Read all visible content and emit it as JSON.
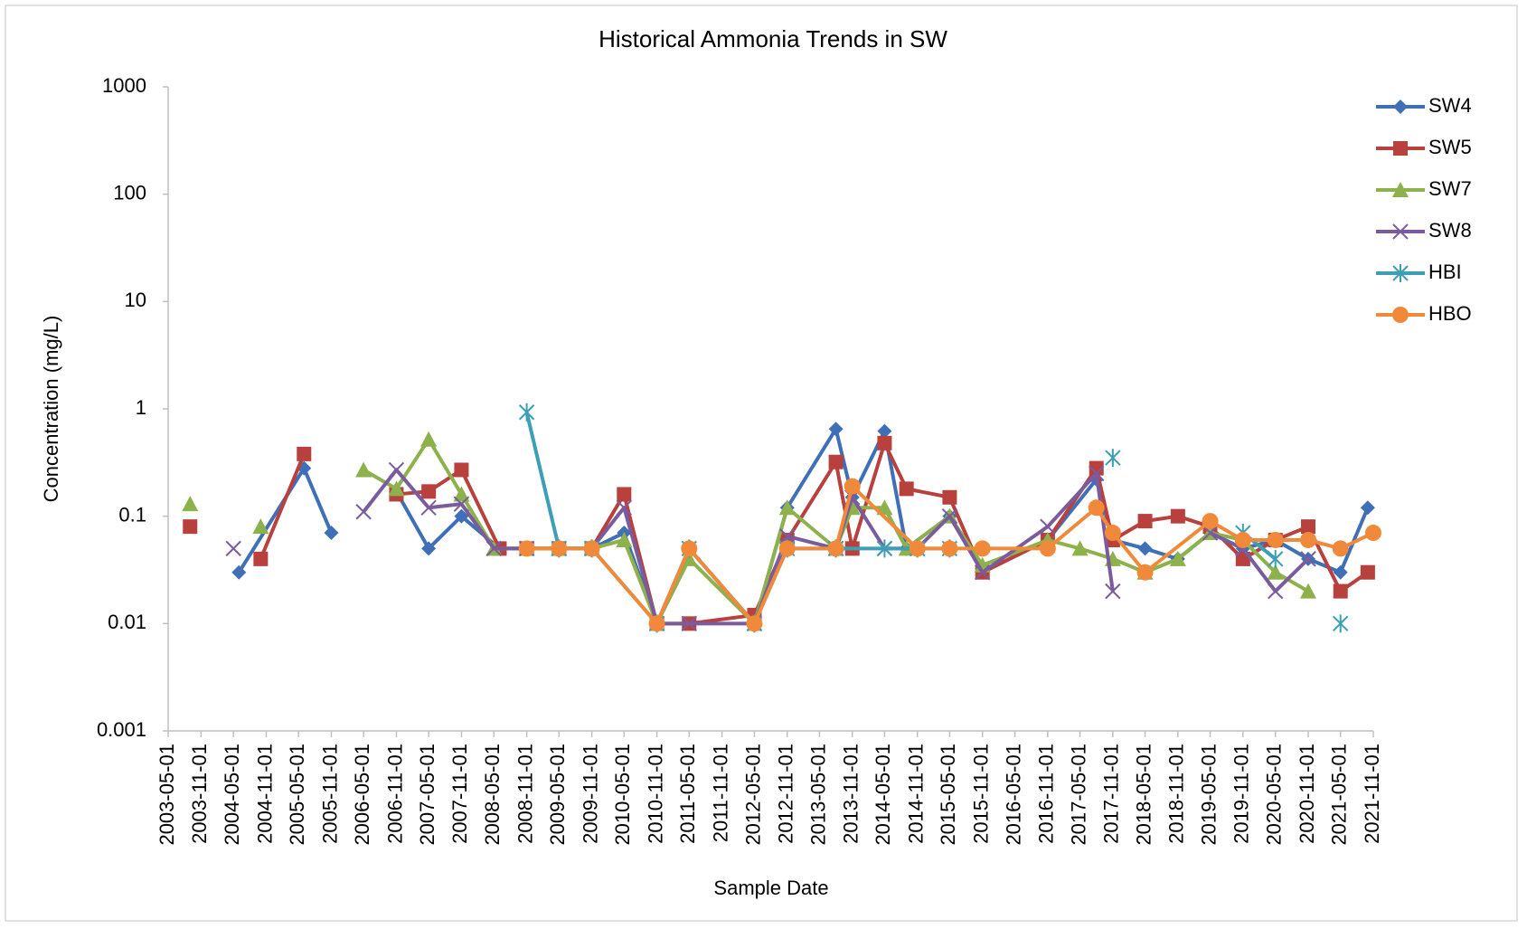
{
  "chart_data": {
    "type": "line",
    "title": "Historical Ammonia Trends in SW",
    "x_label": "Sample Date",
    "y_label": "Concentration (mg/L)",
    "log_y": true,
    "grid": false,
    "legend": "right",
    "ylim": [
      0.001,
      1000
    ],
    "yticks": [
      0.001,
      0.01,
      0.1,
      1,
      10,
      100,
      1000
    ],
    "xlim": [
      "2003-05-01",
      "2021-11-01"
    ],
    "xticks": [
      "2003-05-01",
      "2003-11-01",
      "2004-05-01",
      "2004-11-01",
      "2005-05-01",
      "2005-11-01",
      "2006-05-01",
      "2006-11-01",
      "2007-05-01",
      "2007-11-01",
      "2008-05-01",
      "2008-11-01",
      "2009-05-01",
      "2009-11-01",
      "2010-05-01",
      "2010-11-01",
      "2011-05-01",
      "2011-11-01",
      "2012-05-01",
      "2012-11-01",
      "2013-05-01",
      "2013-11-01",
      "2014-05-01",
      "2014-11-01",
      "2015-05-01",
      "2015-11-01",
      "2016-05-01",
      "2016-11-01",
      "2017-05-01",
      "2017-11-01",
      "2018-05-01",
      "2018-11-01",
      "2019-05-01",
      "2019-11-01",
      "2020-05-01",
      "2020-11-01",
      "2021-05-01",
      "2021-11-01"
    ],
    "series": [
      {
        "name": "SW4",
        "color": "#3f6fb6",
        "marker": "diamond",
        "x": [
          "2004-06-01",
          "2005-06-01",
          "2005-11-01",
          "2006-05-01",
          "2006-11-01",
          "2007-05-01",
          "2007-11-01",
          "2008-06-01",
          "2008-11-01",
          "2009-05-01",
          "2009-11-01",
          "2010-05-01",
          "2010-11-01",
          "2011-05-01",
          "2012-05-01",
          "2012-11-01",
          "2013-08-01",
          "2013-11-01",
          "2014-05-01",
          "2014-09-01",
          "2015-05-01",
          "2015-11-01",
          "2016-11-01",
          "2017-08-01",
          "2017-11-01",
          "2018-05-01",
          "2018-11-01",
          "2019-05-01",
          "2019-11-01",
          "2020-05-01",
          "2020-11-01",
          "2021-05-01",
          "2021-10-01"
        ],
        "values": [
          0.03,
          0.28,
          0.07,
          null,
          0.17,
          0.05,
          0.1,
          0.05,
          0.05,
          0.05,
          0.05,
          0.07,
          0.01,
          0.05,
          0.01,
          0.12,
          0.65,
          0.15,
          0.62,
          0.05,
          0.1,
          0.03,
          0.06,
          0.22,
          0.06,
          0.05,
          0.04,
          0.07,
          0.05,
          0.06,
          0.04,
          0.03,
          0.12
        ]
      },
      {
        "name": "SW5",
        "color": "#b8403d",
        "marker": "square",
        "x": [
          "2003-09-01",
          "2004-03-01",
          "2004-10-01",
          "2005-06-01",
          "2006-05-01",
          "2006-11-01",
          "2007-05-01",
          "2007-11-01",
          "2008-06-01",
          "2008-11-01",
          "2009-05-01",
          "2009-11-01",
          "2010-05-01",
          "2010-11-01",
          "2011-05-01",
          "2012-05-01",
          "2012-11-01",
          "2013-08-01",
          "2013-11-01",
          "2014-05-01",
          "2014-09-01",
          "2015-05-01",
          "2015-11-01",
          "2016-11-01",
          "2017-08-01",
          "2017-11-01",
          "2018-05-01",
          "2018-11-01",
          "2019-05-01",
          "2019-11-01",
          "2020-05-01",
          "2020-11-01",
          "2021-05-01",
          "2021-10-01"
        ],
        "values": [
          0.08,
          null,
          0.04,
          0.38,
          null,
          0.16,
          0.17,
          0.27,
          0.05,
          0.05,
          0.05,
          0.05,
          0.16,
          0.01,
          0.01,
          0.012,
          0.06,
          0.32,
          0.05,
          0.48,
          0.18,
          0.15,
          0.03,
          0.06,
          0.28,
          0.06,
          0.09,
          0.1,
          0.08,
          0.04,
          0.06,
          0.08,
          0.02,
          0.03
        ]
      },
      {
        "name": "SW7",
        "color": "#8db14b",
        "marker": "triangle",
        "x": [
          "2003-09-01",
          "2004-03-01",
          "2004-10-01",
          "2005-06-01",
          "2006-05-01",
          "2006-11-01",
          "2007-05-01",
          "2007-11-01",
          "2008-05-01",
          "2008-11-01",
          "2009-05-01",
          "2009-11-01",
          "2010-05-01",
          "2010-11-01",
          "2011-05-01",
          "2012-05-01",
          "2012-11-01",
          "2013-08-01",
          "2013-11-01",
          "2014-05-01",
          "2014-09-01",
          "2015-05-01",
          "2015-11-01",
          "2016-11-01",
          "2017-05-01",
          "2017-11-01",
          "2018-05-01",
          "2018-11-01",
          "2019-05-01",
          "2019-11-01",
          "2020-05-01",
          "2020-11-01"
        ],
        "values": [
          0.13,
          null,
          0.08,
          null,
          0.27,
          0.18,
          0.52,
          0.16,
          0.05,
          0.05,
          0.05,
          0.05,
          0.06,
          0.01,
          0.04,
          0.01,
          0.12,
          0.05,
          0.12,
          0.12,
          0.05,
          0.1,
          0.035,
          0.06,
          0.05,
          0.04,
          0.03,
          0.04,
          0.07,
          0.06,
          0.03,
          0.02
        ]
      },
      {
        "name": "SW8",
        "color": "#7a5c9e",
        "marker": "x",
        "x": [
          "2004-05-01",
          "2005-06-01",
          "2006-05-01",
          "2006-11-01",
          "2007-05-01",
          "2007-11-01",
          "2008-05-01",
          "2008-11-01",
          "2009-05-01",
          "2009-11-01",
          "2010-05-01",
          "2010-11-01",
          "2011-05-01",
          "2012-05-01",
          "2012-11-01",
          "2013-08-01",
          "2013-11-01",
          "2014-05-01",
          "2014-11-01",
          "2015-05-01",
          "2015-11-01",
          "2016-11-01",
          "2017-08-01",
          "2017-11-01",
          "2018-08-01",
          "2019-05-01",
          "2019-11-01",
          "2020-05-01",
          "2020-11-01"
        ],
        "values": [
          0.05,
          null,
          0.11,
          0.27,
          0.12,
          0.13,
          0.05,
          0.05,
          0.05,
          0.05,
          0.12,
          0.01,
          0.01,
          0.01,
          0.065,
          0.05,
          0.15,
          0.05,
          0.05,
          0.1,
          0.03,
          0.08,
          0.25,
          0.02,
          null,
          0.07,
          0.05,
          0.02,
          0.04
        ]
      },
      {
        "name": "HBI",
        "color": "#3c9fb5",
        "marker": "star",
        "x": [
          "2008-11-01",
          "2009-05-01",
          "2009-11-01",
          "2010-11-01",
          "2011-05-01",
          "2012-05-01",
          "2012-11-01",
          "2013-08-01",
          "2014-05-01",
          "2014-11-01",
          "2015-05-01",
          "2016-05-01",
          "2017-11-01",
          "2018-08-01",
          "2019-11-01",
          "2020-05-01",
          "2020-11-01",
          "2021-05-01"
        ],
        "values": [
          0.93,
          0.05,
          0.05,
          0.01,
          0.05,
          0.01,
          0.05,
          0.05,
          0.05,
          0.05,
          0.05,
          null,
          0.35,
          null,
          0.07,
          0.04,
          null,
          0.01
        ]
      },
      {
        "name": "HBO",
        "color": "#f08a3a",
        "marker": "circle",
        "x": [
          "2008-11-01",
          "2009-05-01",
          "2009-11-01",
          "2010-11-01",
          "2011-05-01",
          "2012-05-01",
          "2012-11-01",
          "2013-08-01",
          "2013-11-01",
          "2014-11-01",
          "2015-05-01",
          "2015-11-01",
          "2016-11-01",
          "2017-08-01",
          "2017-11-01",
          "2018-05-01",
          "2019-05-01",
          "2019-11-01",
          "2020-05-01",
          "2020-11-01",
          "2021-05-01",
          "2021-11-01"
        ],
        "values": [
          0.05,
          0.05,
          0.05,
          0.01,
          0.05,
          0.01,
          0.05,
          0.05,
          0.19,
          0.05,
          0.05,
          0.05,
          0.05,
          0.12,
          0.07,
          0.03,
          0.09,
          0.06,
          0.06,
          0.06,
          0.05,
          0.07
        ]
      }
    ]
  }
}
